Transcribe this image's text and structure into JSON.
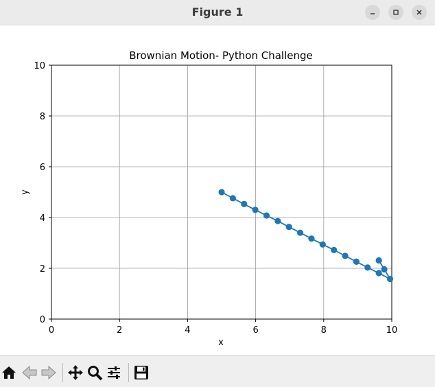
{
  "window": {
    "title": "Figure 1",
    "controls": [
      "minimize-icon",
      "maximize-icon",
      "close-icon"
    ]
  },
  "toolbar": {
    "buttons": [
      {
        "name": "home-icon"
      },
      {
        "name": "back-arrow-icon"
      },
      {
        "name": "forward-arrow-icon"
      },
      {
        "name": "pan-icon"
      },
      {
        "name": "zoom-icon"
      },
      {
        "name": "configure-subplots-icon"
      },
      {
        "name": "save-icon"
      }
    ]
  },
  "chart_data": {
    "type": "line",
    "title": "Brownian Motion- Python Challenge",
    "xlabel": "x",
    "ylabel": "y",
    "xlim": [
      0,
      10
    ],
    "ylim": [
      0,
      10
    ],
    "xticks": [
      "0",
      "2",
      "4",
      "6",
      "8",
      "10"
    ],
    "yticks": [
      "0",
      "2",
      "4",
      "6",
      "8",
      "10"
    ],
    "grid": true,
    "line_color": "#1f77b4",
    "grid_color": "#9a9ab0",
    "marker": "circle",
    "series": [
      {
        "x": [
          5.0,
          5.33,
          5.66,
          5.99,
          6.32,
          6.65,
          6.98,
          7.31,
          7.64,
          7.97,
          8.3,
          8.63,
          8.96,
          9.29,
          9.62,
          9.95,
          9.78,
          9.62
        ],
        "y": [
          5.0,
          4.76,
          4.53,
          4.3,
          4.08,
          3.86,
          3.63,
          3.4,
          3.17,
          2.94,
          2.72,
          2.49,
          2.26,
          2.03,
          1.81,
          1.58,
          1.96,
          2.31
        ]
      }
    ]
  }
}
